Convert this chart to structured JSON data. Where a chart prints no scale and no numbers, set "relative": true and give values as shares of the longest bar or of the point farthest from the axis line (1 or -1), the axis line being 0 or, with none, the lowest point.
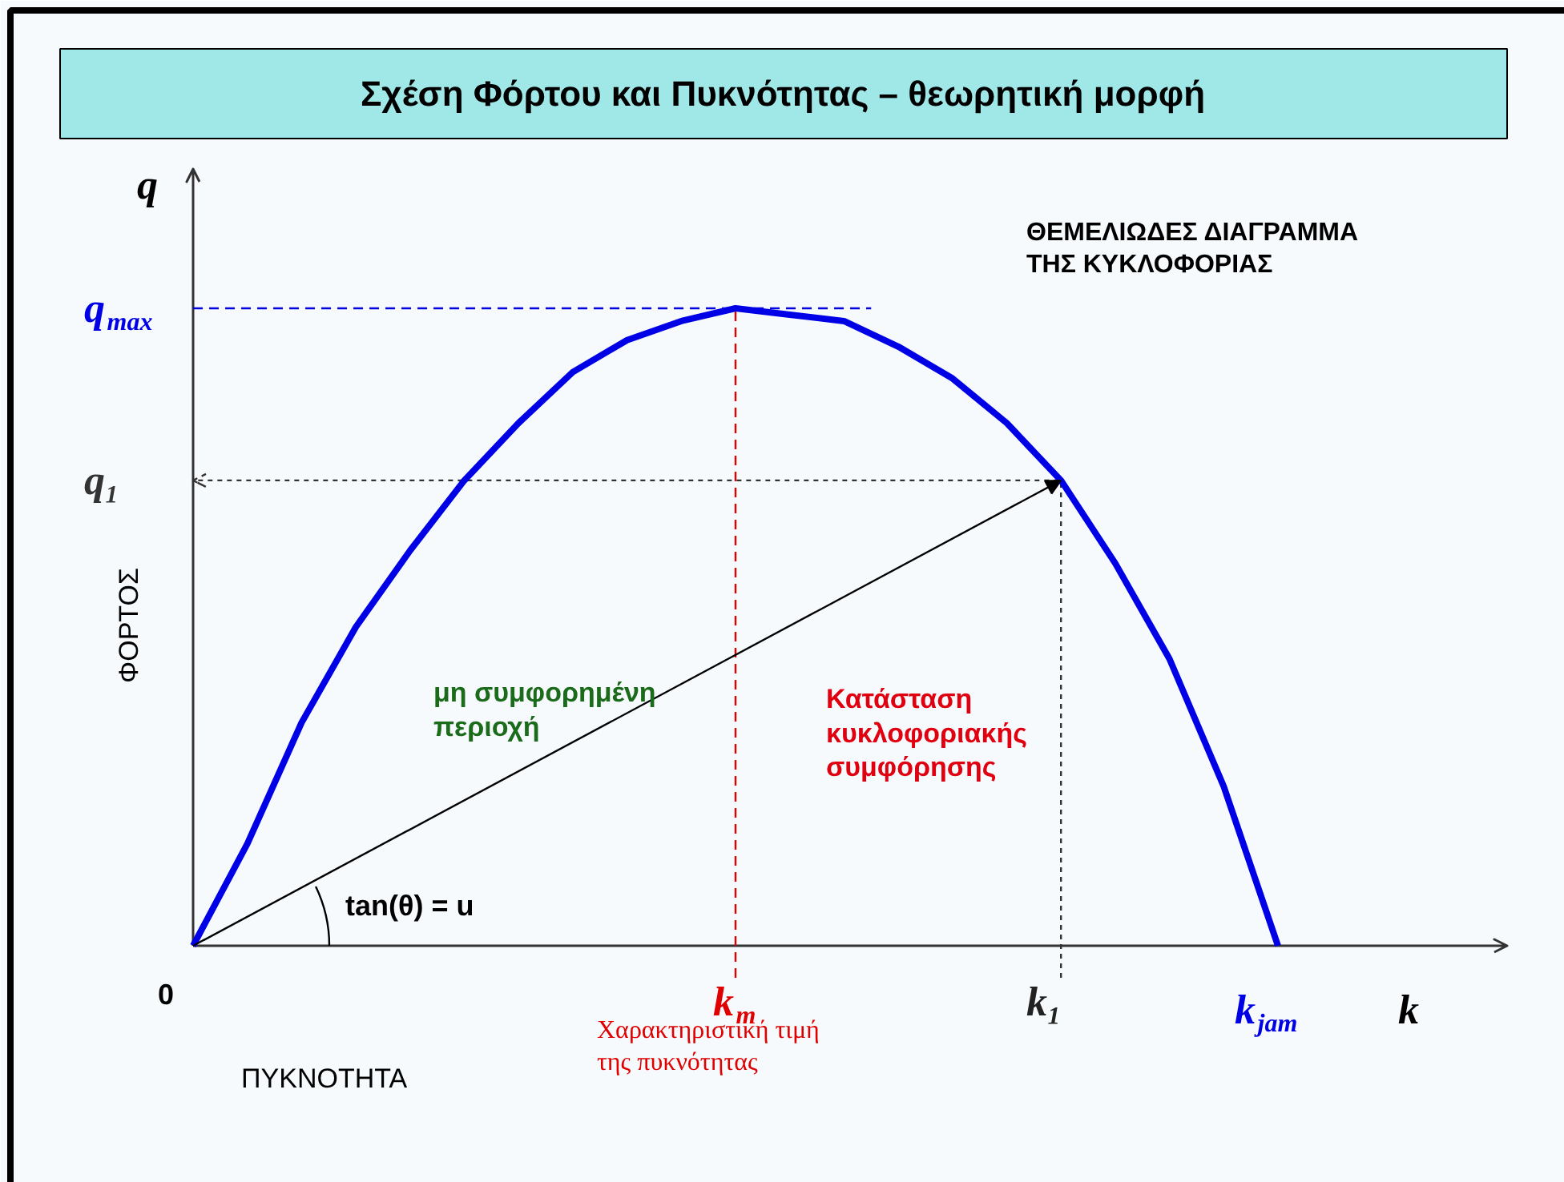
{
  "chart_data": {
    "type": "line",
    "title": "Σχέση Φόρτου και Πυκνότητας – θεωρητική μορφή",
    "xlabel": "ΠΥΚΝΟΤΗΤΑ",
    "ylabel": "ΦΟΡΤΟΣ",
    "relative": true,
    "categories": [
      null,
      null,
      null,
      null,
      null,
      null,
      null,
      null,
      null,
      null,
      null,
      null,
      null,
      null,
      null,
      null,
      null,
      null,
      null,
      null,
      null
    ],
    "series": [
      {
        "color": "#0000e6",
        "values": [
          0,
          0.16,
          0.35,
          0.5,
          0.62,
          0.73,
          0.82,
          0.9,
          0.95,
          0.98,
          1,
          0.99,
          0.98,
          0.94,
          0.89,
          0.82,
          0.73,
          0.6,
          0.45,
          0.25,
          0
        ]
      }
    ],
    "ref_lines": [
      {
        "axis": "y",
        "value": 1,
        "label": "q$_{max}$",
        "color": "#0000e6",
        "line_style": "dashed"
      },
      {
        "axis": "y",
        "value": 0.73,
        "label": "q₁",
        "color": "#333333",
        "line_style": "dotted"
      }
    ],
    "annotations": [
      "ΘΕΜΕΛΙΩΔΕΣ ΔΙΑΓΡΑΜΜΑ\nΤΗΣ ΚΥΚΛΟΦΟΡΙΑΣ",
      "μη συμφορημένη\nπεριοχή",
      "Κατάσταση\nκυκλοφοριακής\nσυμφόρησης",
      "tan(θ) = u",
      "Χαρακτηριστική τιμή\nτης πυκνότητας",
      "k$_{jam}$",
      "q",
      "k",
      "0",
      "k$_{m}$",
      "k₁"
    ]
  }
}
